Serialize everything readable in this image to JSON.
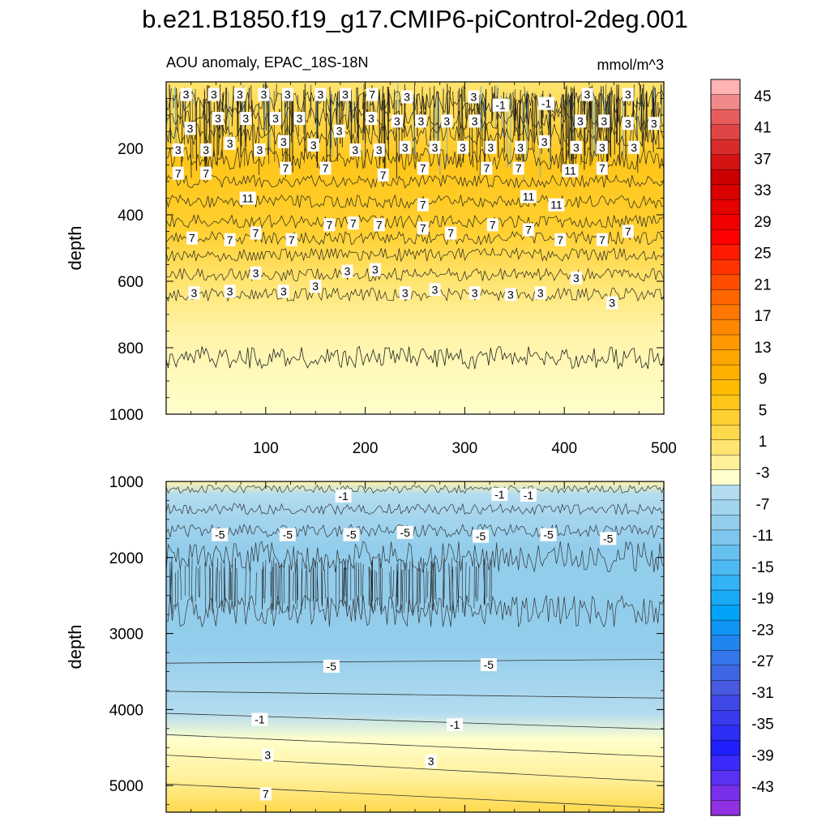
{
  "figure": {
    "title": "b.e21.B1850.f19_g17.CMIP6-piControl-2deg.001",
    "subtitle_left": "AOU anomaly, EPAC_18S-18N",
    "subtitle_right": "mmol/m^3"
  },
  "chart_data": [
    {
      "type": "heatmap",
      "panel": "upper",
      "ylabel": "depth",
      "xlabel": "",
      "xlim": [
        0,
        500
      ],
      "ylim": [
        1000,
        0
      ],
      "y_inverted": true,
      "xticks": [
        100,
        200,
        300,
        400,
        500
      ],
      "yticks": [
        200,
        400,
        600,
        800,
        1000
      ],
      "contour_labels": [
        {
          "value": "3",
          "x": 20,
          "y": 38
        },
        {
          "value": "3",
          "x": 48,
          "y": 38
        },
        {
          "value": "3",
          "x": 74,
          "y": 38
        },
        {
          "value": "3",
          "x": 98,
          "y": 38
        },
        {
          "value": "3",
          "x": 122,
          "y": 38
        },
        {
          "value": "3",
          "x": 155,
          "y": 38
        },
        {
          "value": "3",
          "x": 180,
          "y": 38
        },
        {
          "value": "7",
          "x": 207,
          "y": 38
        },
        {
          "value": "3",
          "x": 242,
          "y": 45
        },
        {
          "value": "3",
          "x": 309,
          "y": 45
        },
        {
          "value": "-1",
          "x": 336,
          "y": 70
        },
        {
          "value": "-1",
          "x": 382,
          "y": 65
        },
        {
          "value": "3",
          "x": 423,
          "y": 38
        },
        {
          "value": "3",
          "x": 464,
          "y": 38
        },
        {
          "value": "3",
          "x": 24,
          "y": 140
        },
        {
          "value": "3",
          "x": 52,
          "y": 110
        },
        {
          "value": "3",
          "x": 80,
          "y": 110
        },
        {
          "value": "3",
          "x": 110,
          "y": 110
        },
        {
          "value": "3",
          "x": 134,
          "y": 110
        },
        {
          "value": "3",
          "x": 174,
          "y": 148
        },
        {
          "value": "3",
          "x": 206,
          "y": 110
        },
        {
          "value": "3",
          "x": 232,
          "y": 118
        },
        {
          "value": "3",
          "x": 256,
          "y": 118
        },
        {
          "value": "3",
          "x": 282,
          "y": 118
        },
        {
          "value": "3",
          "x": 310,
          "y": 118
        },
        {
          "value": "3",
          "x": 416,
          "y": 118
        },
        {
          "value": "3",
          "x": 440,
          "y": 118
        },
        {
          "value": "3",
          "x": 464,
          "y": 125
        },
        {
          "value": "3",
          "x": 490,
          "y": 125
        },
        {
          "value": "3",
          "x": 12,
          "y": 205
        },
        {
          "value": "3",
          "x": 40,
          "y": 205
        },
        {
          "value": "3",
          "x": 64,
          "y": 185
        },
        {
          "value": "3",
          "x": 94,
          "y": 205
        },
        {
          "value": "3",
          "x": 118,
          "y": 180
        },
        {
          "value": "3",
          "x": 148,
          "y": 190
        },
        {
          "value": "3",
          "x": 190,
          "y": 205
        },
        {
          "value": "3",
          "x": 214,
          "y": 205
        },
        {
          "value": "3",
          "x": 240,
          "y": 197
        },
        {
          "value": "3",
          "x": 270,
          "y": 197
        },
        {
          "value": "3",
          "x": 298,
          "y": 197
        },
        {
          "value": "3",
          "x": 326,
          "y": 197
        },
        {
          "value": "3",
          "x": 356,
          "y": 197
        },
        {
          "value": "3",
          "x": 380,
          "y": 180
        },
        {
          "value": "3",
          "x": 412,
          "y": 197
        },
        {
          "value": "3",
          "x": 438,
          "y": 197
        },
        {
          "value": "3",
          "x": 470,
          "y": 197
        },
        {
          "value": "7",
          "x": 12,
          "y": 275
        },
        {
          "value": "7",
          "x": 40,
          "y": 275
        },
        {
          "value": "7",
          "x": 120,
          "y": 260
        },
        {
          "value": "7",
          "x": 160,
          "y": 260
        },
        {
          "value": "7",
          "x": 218,
          "y": 280
        },
        {
          "value": "7",
          "x": 258,
          "y": 260
        },
        {
          "value": "7",
          "x": 322,
          "y": 260
        },
        {
          "value": "7",
          "x": 354,
          "y": 260
        },
        {
          "value": "11",
          "x": 406,
          "y": 267
        },
        {
          "value": "7",
          "x": 438,
          "y": 260
        },
        {
          "value": "11",
          "x": 82,
          "y": 350
        },
        {
          "value": "11",
          "x": 364,
          "y": 345
        },
        {
          "value": "11",
          "x": 392,
          "y": 370
        },
        {
          "value": "7",
          "x": 258,
          "y": 370
        },
        {
          "value": "7",
          "x": 164,
          "y": 430
        },
        {
          "value": "7",
          "x": 188,
          "y": 425
        },
        {
          "value": "7",
          "x": 214,
          "y": 430
        },
        {
          "value": "7",
          "x": 258,
          "y": 440
        },
        {
          "value": "7",
          "x": 286,
          "y": 455
        },
        {
          "value": "7",
          "x": 328,
          "y": 430
        },
        {
          "value": "7",
          "x": 364,
          "y": 445
        },
        {
          "value": "7",
          "x": 396,
          "y": 475
        },
        {
          "value": "7",
          "x": 438,
          "y": 475
        },
        {
          "value": "7",
          "x": 464,
          "y": 450
        },
        {
          "value": "7",
          "x": 26,
          "y": 470
        },
        {
          "value": "7",
          "x": 64,
          "y": 475
        },
        {
          "value": "7",
          "x": 90,
          "y": 455
        },
        {
          "value": "7",
          "x": 126,
          "y": 475
        },
        {
          "value": "3",
          "x": 90,
          "y": 575
        },
        {
          "value": "3",
          "x": 182,
          "y": 570
        },
        {
          "value": "3",
          "x": 210,
          "y": 565
        },
        {
          "value": "3",
          "x": 28,
          "y": 635
        },
        {
          "value": "3",
          "x": 64,
          "y": 630
        },
        {
          "value": "3",
          "x": 118,
          "y": 630
        },
        {
          "value": "3",
          "x": 150,
          "y": 615
        },
        {
          "value": "3",
          "x": 240,
          "y": 635
        },
        {
          "value": "3",
          "x": 270,
          "y": 625
        },
        {
          "value": "3",
          "x": 310,
          "y": 635
        },
        {
          "value": "3",
          "x": 346,
          "y": 640
        },
        {
          "value": "3",
          "x": 376,
          "y": 635
        },
        {
          "value": "3",
          "x": 412,
          "y": 590
        },
        {
          "value": "3",
          "x": 448,
          "y": 665
        }
      ]
    },
    {
      "type": "heatmap",
      "panel": "lower",
      "ylabel": "depth",
      "xlabel": "",
      "xlim": [
        0,
        500
      ],
      "ylim": [
        5350,
        1000
      ],
      "y_inverted": true,
      "yticks": [
        1000,
        2000,
        3000,
        4000,
        5000
      ],
      "contour_labels": [
        {
          "value": "-1",
          "x": 178,
          "y": 1190
        },
        {
          "value": "-1",
          "x": 335,
          "y": 1170
        },
        {
          "value": "-1",
          "x": 364,
          "y": 1180
        },
        {
          "value": "-5",
          "x": 54,
          "y": 1700
        },
        {
          "value": "-5",
          "x": 122,
          "y": 1700
        },
        {
          "value": "-5",
          "x": 186,
          "y": 1700
        },
        {
          "value": "-5",
          "x": 240,
          "y": 1670
        },
        {
          "value": "-5",
          "x": 316,
          "y": 1720
        },
        {
          "value": "-5",
          "x": 384,
          "y": 1700
        },
        {
          "value": "-5",
          "x": 444,
          "y": 1750
        },
        {
          "value": "-5",
          "x": 166,
          "y": 3430
        },
        {
          "value": "-5",
          "x": 324,
          "y": 3410
        },
        {
          "value": "-1",
          "x": 94,
          "y": 4130
        },
        {
          "value": "-1",
          "x": 290,
          "y": 4200
        },
        {
          "value": "3",
          "x": 102,
          "y": 4600
        },
        {
          "value": "3",
          "x": 266,
          "y": 4680
        },
        {
          "value": "7",
          "x": 100,
          "y": 5110
        }
      ]
    }
  ],
  "colorbar": {
    "labels": [
      "45",
      "41",
      "37",
      "33",
      "29",
      "25",
      "21",
      "17",
      "13",
      "9",
      "5",
      "1",
      "-3",
      "-7",
      "-11",
      "-15",
      "-19",
      "-23",
      "-27",
      "-31",
      "-35",
      "-39",
      "-43"
    ],
    "colors": [
      "#ffb3b3",
      "#f08a8a",
      "#e65c5c",
      "#e04545",
      "#d92b2b",
      "#d41313",
      "#cc0000",
      "#d90000",
      "#e60000",
      "#f20000",
      "#ff0000",
      "#ff1a00",
      "#ff3300",
      "#ff4d00",
      "#ff6600",
      "#ff7700",
      "#ff8800",
      "#ff9900",
      "#ffa500",
      "#ffb000",
      "#ffbb00",
      "#ffc61a",
      "#ffd030",
      "#ffd94d",
      "#ffe470",
      "#fff099",
      "#ffffcc",
      "#b3dcf0",
      "#a3d4ee",
      "#93cdec",
      "#7fc6ee",
      "#66c0f0",
      "#4db9f2",
      "#33b3f5",
      "#1aabf7",
      "#00a3f8",
      "#0f95f4",
      "#2085ee",
      "#3375ea",
      "#3f66e4",
      "#4a5ae0",
      "#3f48e4",
      "#3a3aee",
      "#2e2ef6",
      "#2020ff",
      "#3a2afc",
      "#5a30f2",
      "#7a30ea",
      "#9030e0"
    ]
  }
}
